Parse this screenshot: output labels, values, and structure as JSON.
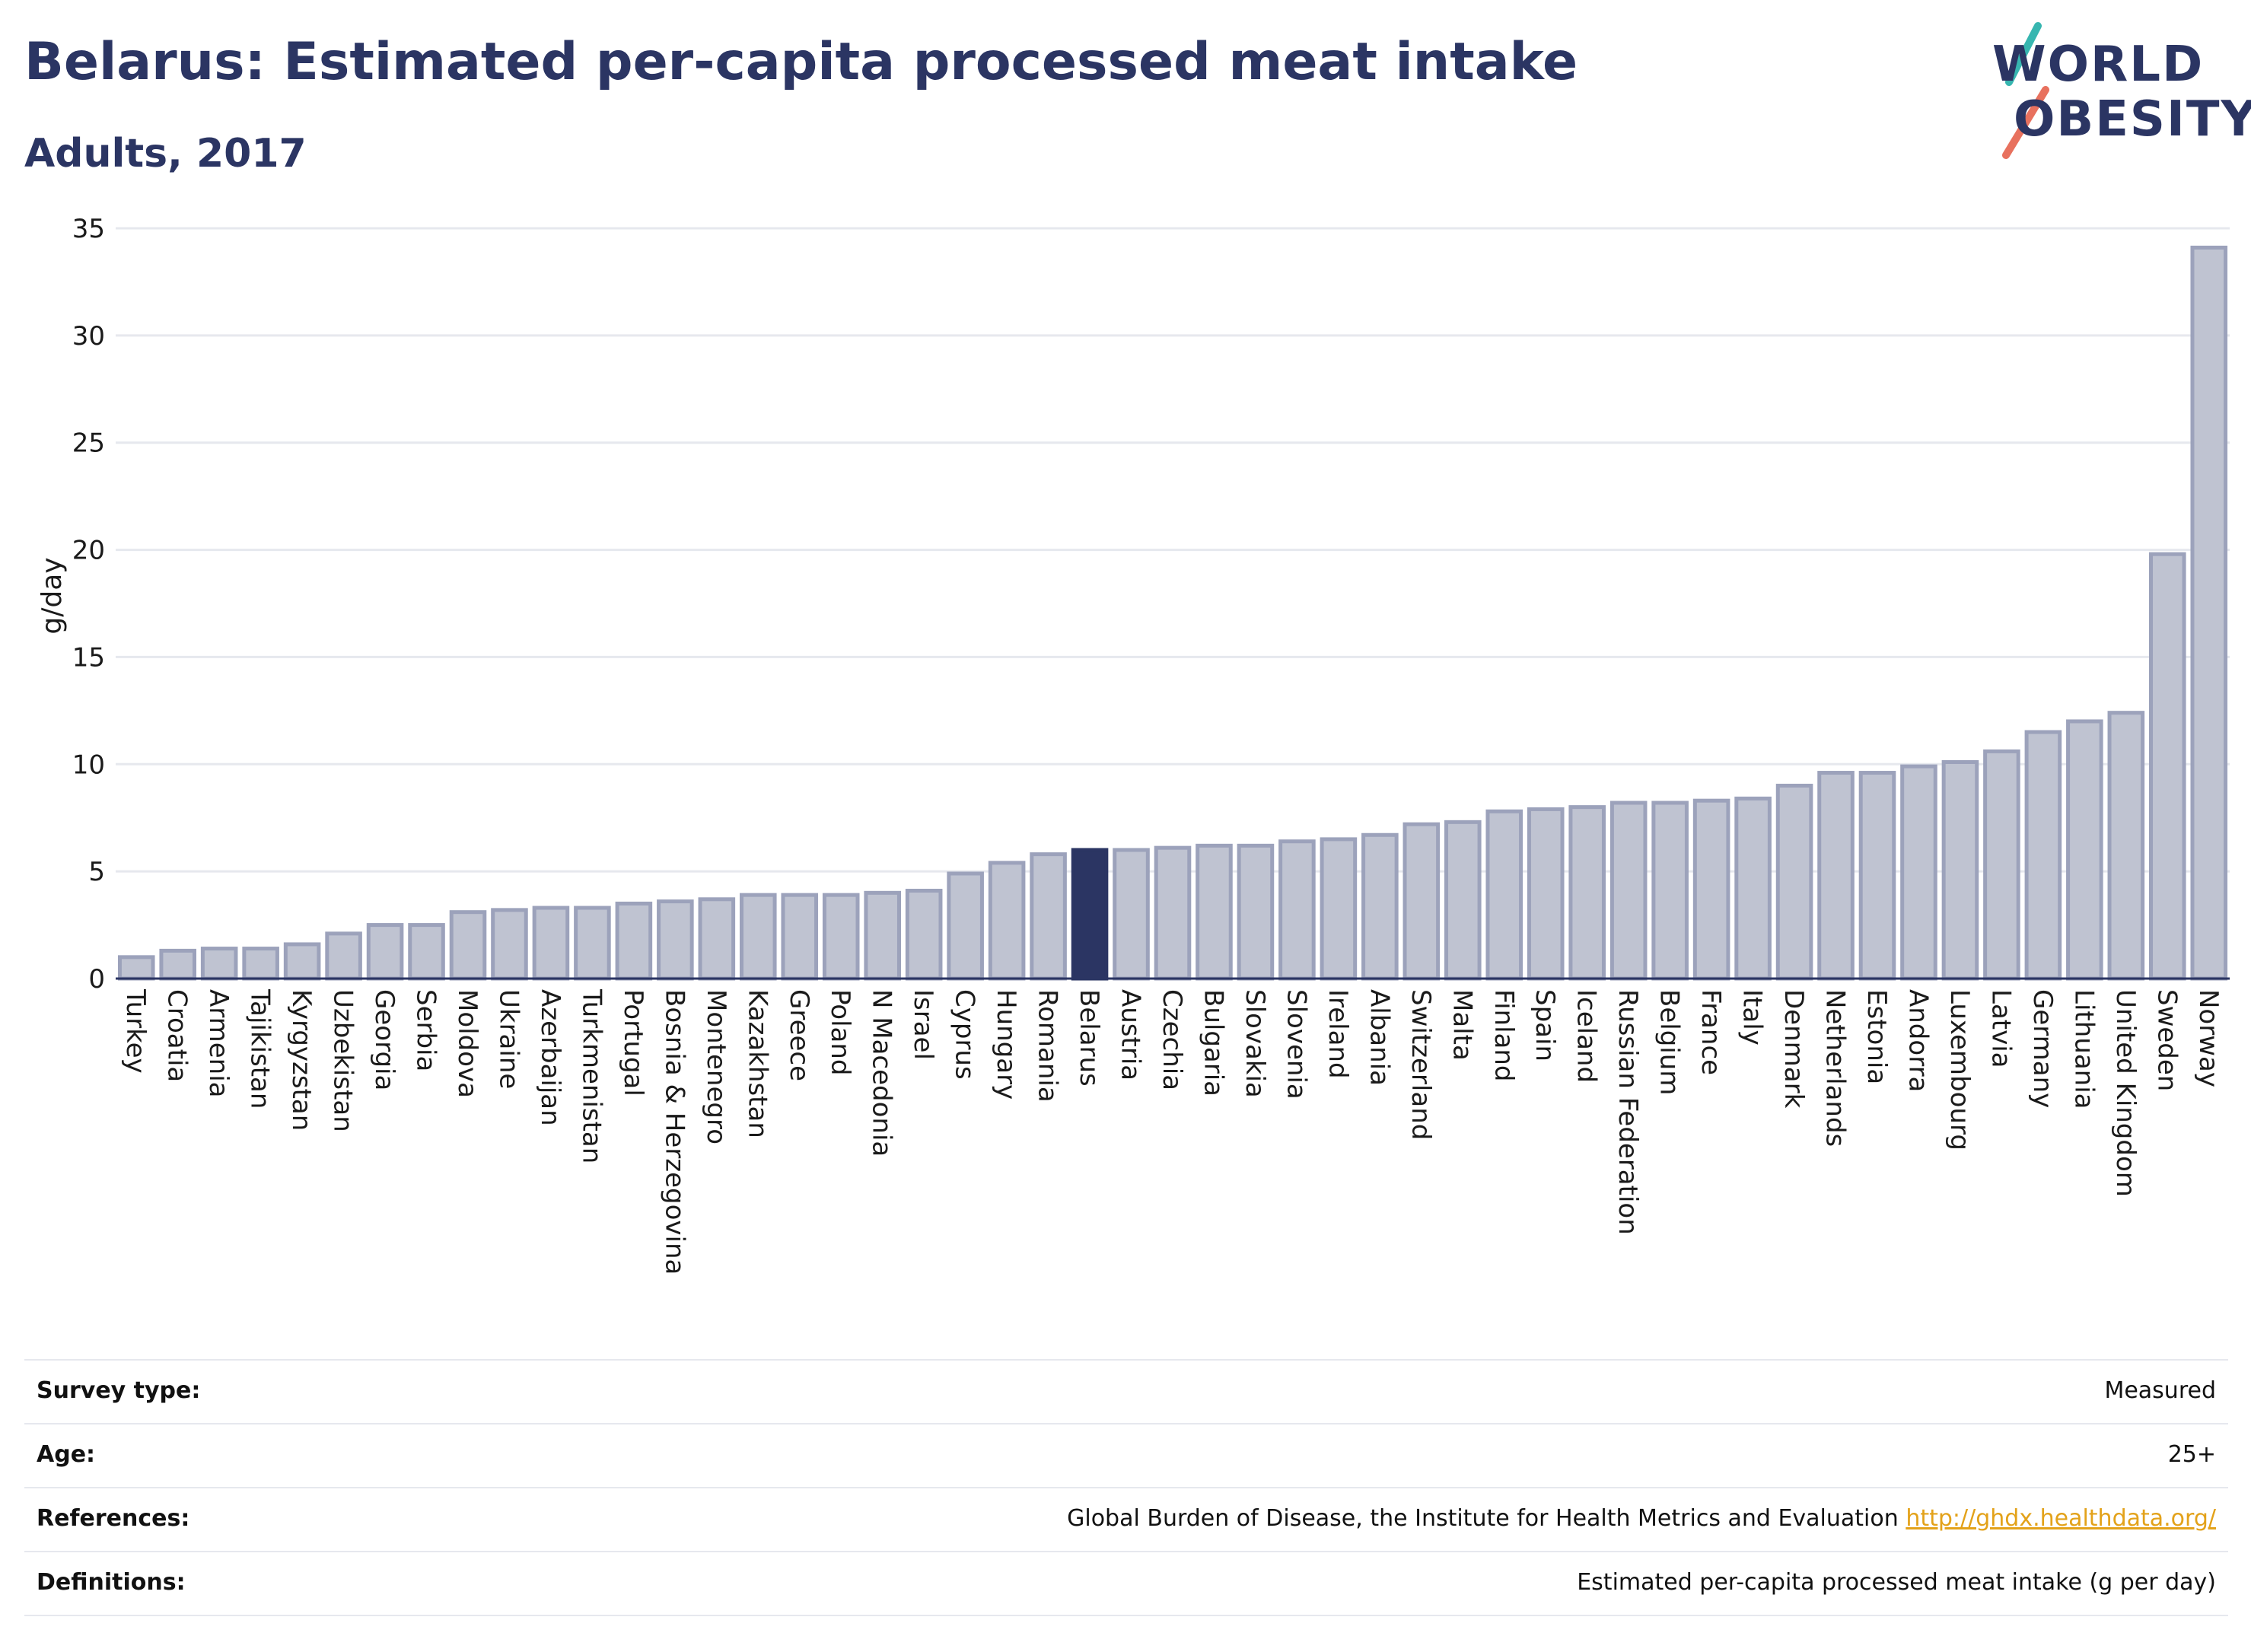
{
  "header": {
    "title": "Belarus: Estimated per-capita processed meat intake",
    "subtitle": "Adults, 2017"
  },
  "logo": {
    "line1": "WORLD",
    "line2": "OBESITY"
  },
  "colors": {
    "highlight": "#2b3563",
    "bar_fill": "#bfc3d1",
    "bar_stroke": "#9ca2bb",
    "grid": "#e6e8ee",
    "link": "#e3a21a",
    "slash_teal": "#37b6b0",
    "slash_coral": "#e8715e"
  },
  "chart_data": {
    "type": "bar",
    "title": "Belarus: Estimated per-capita processed meat intake",
    "subtitle": "Adults, 2017",
    "xlabel": "",
    "ylabel": "g/day",
    "ylim": [
      0,
      35
    ],
    "yticks": [
      0,
      5,
      10,
      15,
      20,
      25,
      30,
      35
    ],
    "grid": true,
    "highlight": "Belarus",
    "categories": [
      "Turkey",
      "Croatia",
      "Armenia",
      "Tajikistan",
      "Kyrgyzstan",
      "Uzbekistan",
      "Georgia",
      "Serbia",
      "Moldova",
      "Ukraine",
      "Azerbaijan",
      "Turkmenistan",
      "Portugal",
      "Bosnia & Herzegovina",
      "Montenegro",
      "Kazakhstan",
      "Greece",
      "Poland",
      "N Macedonia",
      "Israel",
      "Cyprus",
      "Hungary",
      "Romania",
      "Belarus",
      "Austria",
      "Czechia",
      "Bulgaria",
      "Slovakia",
      "Slovenia",
      "Ireland",
      "Albania",
      "Switzerland",
      "Malta",
      "Finland",
      "Spain",
      "Iceland",
      "Russian Federation",
      "Belgium",
      "France",
      "Italy",
      "Denmark",
      "Netherlands",
      "Estonia",
      "Andorra",
      "Luxembourg",
      "Latvia",
      "Germany",
      "Lithuania",
      "United Kingdom",
      "Sweden",
      "Norway"
    ],
    "values": [
      1.0,
      1.3,
      1.4,
      1.4,
      1.6,
      2.1,
      2.5,
      2.5,
      3.1,
      3.2,
      3.3,
      3.3,
      3.5,
      3.6,
      3.7,
      3.9,
      3.9,
      3.9,
      4.0,
      4.1,
      4.9,
      5.4,
      5.8,
      6.0,
      6.0,
      6.1,
      6.2,
      6.2,
      6.4,
      6.5,
      6.7,
      7.2,
      7.3,
      7.8,
      7.9,
      8.0,
      8.2,
      8.2,
      8.3,
      8.4,
      9.0,
      9.6,
      9.6,
      9.9,
      10.1,
      10.6,
      11.5,
      12.0,
      12.4,
      19.8,
      34.1
    ]
  },
  "info": [
    {
      "key": "Survey type:",
      "value": "Measured"
    },
    {
      "key": "Age:",
      "value": "25+"
    },
    {
      "key": "References:",
      "value": "Global Burden of Disease, the Institute for Health Metrics and Evaluation",
      "link": "http://ghdx.healthdata.org/"
    },
    {
      "key": "Definitions:",
      "value": "Estimated per-capita processed meat intake (g per day)"
    }
  ]
}
